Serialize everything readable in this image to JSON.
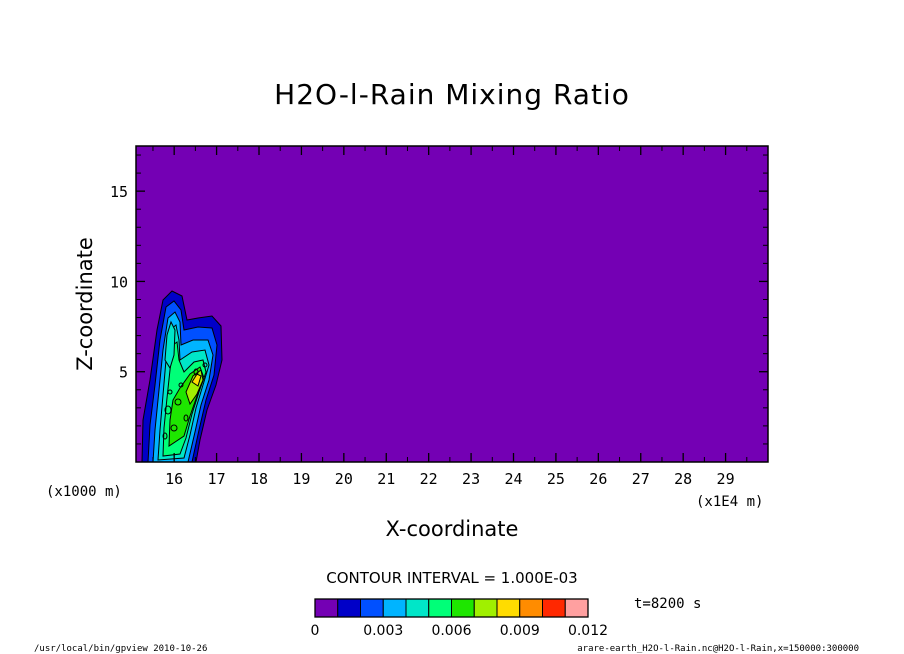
{
  "chart_data": {
    "type": "heatmap",
    "title": "H2O-l-Rain Mixing Ratio",
    "xlabel": "X-coordinate",
    "ylabel": "Z-coordinate",
    "x_unit_left": "(x1000 m)",
    "x_unit_right": "(x1E4 m)",
    "xlim": [
      15.1,
      30.0
    ],
    "ylim": [
      0.0,
      17.5
    ],
    "x_ticks": [
      16,
      17,
      18,
      19,
      20,
      21,
      22,
      23,
      24,
      25,
      26,
      27,
      28,
      29
    ],
    "y_ticks": [
      5,
      10,
      15
    ],
    "contour_interval_text": "CONTOUR INTERVAL = 1.000E-03",
    "time_label": "t=8200 s",
    "colorbar": {
      "levels": [
        0,
        0.001,
        0.002,
        0.003,
        0.004,
        0.005,
        0.006,
        0.007,
        0.008,
        0.009,
        0.01,
        0.011,
        0.012
      ],
      "tick_labels": [
        "0",
        "0.003",
        "0.006",
        "0.009",
        "0.012"
      ],
      "colors": [
        "#7400b4",
        "#0000c8",
        "#0050ff",
        "#00b4ff",
        "#00e6c8",
        "#00ff78",
        "#1ee600",
        "#a0f000",
        "#ffdc00",
        "#ff8c00",
        "#ff2800",
        "#ffa0a0"
      ]
    },
    "background_color": "#7400b4",
    "grid": false
  },
  "footer": {
    "left": "/usr/local/bin/gpview  2010-10-26",
    "right": "arare-earth_H2O-l-Rain.nc@H2O-l-Rain,x=150000:300000"
  }
}
